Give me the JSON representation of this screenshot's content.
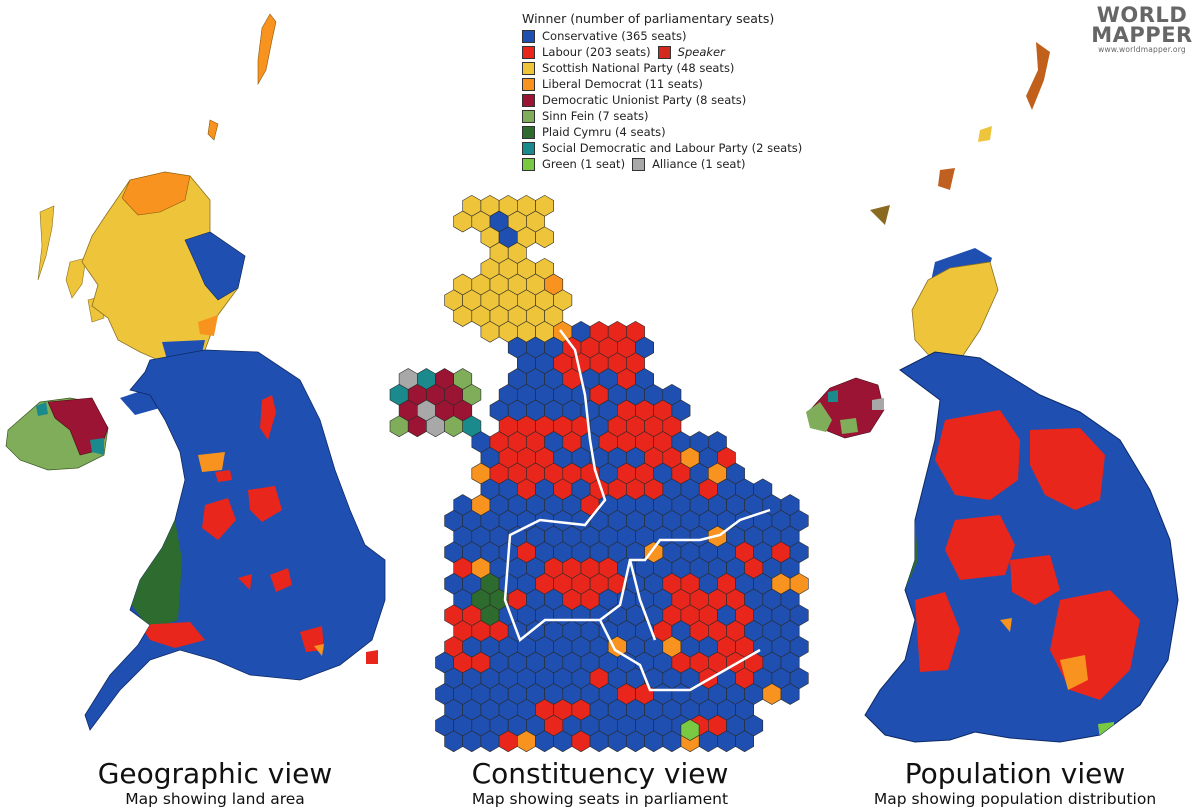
{
  "legend": {
    "title": "Winner (number of parliamentary seats)",
    "items": [
      {
        "label": "Conservative (365 seats)",
        "color": "#1f4fb0"
      },
      {
        "label": "Labour (203 seats)",
        "color": "#e8261c",
        "extra_label": "Speaker",
        "extra_color": "#d42a1e"
      },
      {
        "label": "Scottish National Party (48 seats)",
        "color": "#eec43a"
      },
      {
        "label": "Liberal Democrat (11 seats)",
        "color": "#f7931e"
      },
      {
        "label": "Democratic Unionist Party (8 seats)",
        "color": "#9b1433"
      },
      {
        "label": "Sinn Fein (7 seats)",
        "color": "#7fad5a"
      },
      {
        "label": "Plaid Cymru (4 seats)",
        "color": "#2e6b2e"
      },
      {
        "label": "Social Democratic and Labour Party (2 seats)",
        "color": "#1b8a8c"
      },
      {
        "label": "Green (1 seat)",
        "color": "#7ac943",
        "extra_label": "Alliance (1 seat)",
        "extra_color": "#a8a8a8"
      }
    ]
  },
  "logo": {
    "line1": "WORLD",
    "line2": "MAPPER",
    "url": "www.worldmapper.org"
  },
  "views": [
    {
      "title": "Geographic view",
      "subtitle": "Map showing land area"
    },
    {
      "title": "Constituency view",
      "subtitle": "Map showing seats in parliament"
    },
    {
      "title": "Population view",
      "subtitle": "Map showing population distribution"
    }
  ],
  "colors": {
    "conservative": "#1f4fb0",
    "labour": "#e8261c",
    "snp": "#eec43a",
    "libdem": "#f7931e",
    "dup": "#9b1433",
    "sinnfein": "#7fad5a",
    "plaid": "#2e6b2e",
    "sdlp": "#1b8a8c",
    "green": "#7ac943",
    "alliance": "#a8a8a8"
  }
}
